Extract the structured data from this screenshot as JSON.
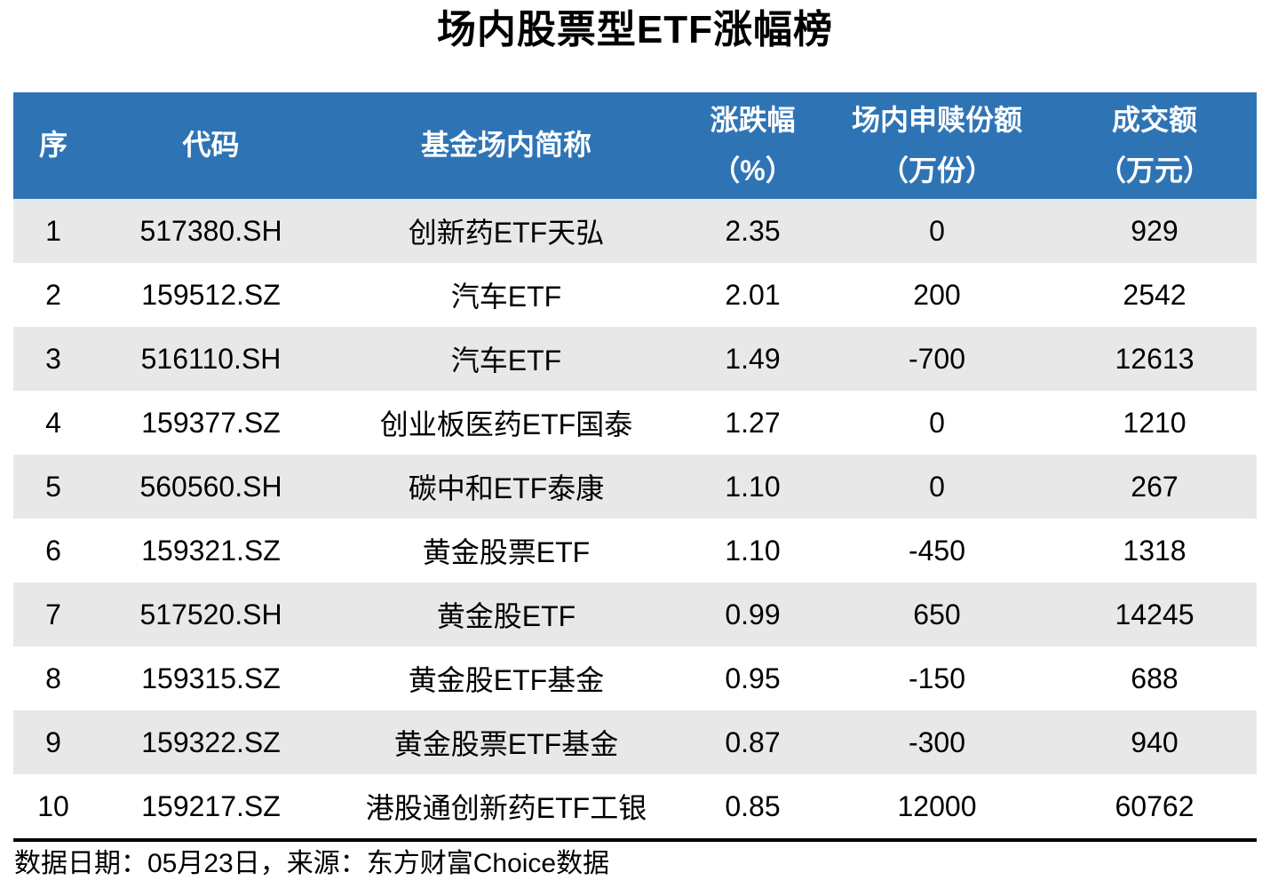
{
  "page": {
    "title": "场内股票型ETF涨幅榜",
    "footer_note": "数据日期：05月23日，来源：东方财富Choice数据"
  },
  "colors": {
    "header_bg": "#2E74B5",
    "header_text": "#FFFFFF",
    "row_alt_bg": "#E8E8E8",
    "row_bg": "#FFFFFF",
    "body_text": "#000000",
    "divider": "#000000"
  },
  "table": {
    "headers": [
      {
        "label": "序",
        "unit": ""
      },
      {
        "label": "代码",
        "unit": ""
      },
      {
        "label": "基金场内简称",
        "unit": ""
      },
      {
        "label": "涨跌幅",
        "unit": "（%）"
      },
      {
        "label": "场内申赎份额",
        "unit": "（万份）"
      },
      {
        "label": "成交额",
        "unit": "（万元）"
      }
    ],
    "rows": [
      {
        "rank": "1",
        "code": "517380.SH",
        "name": "创新药ETF天弘",
        "change": "2.35",
        "shares": "0",
        "turnover": "929"
      },
      {
        "rank": "2",
        "code": "159512.SZ",
        "name": "汽车ETF",
        "change": "2.01",
        "shares": "200",
        "turnover": "2542"
      },
      {
        "rank": "3",
        "code": "516110.SH",
        "name": "汽车ETF",
        "change": "1.49",
        "shares": "-700",
        "turnover": "12613"
      },
      {
        "rank": "4",
        "code": "159377.SZ",
        "name": "创业板医药ETF国泰",
        "change": "1.27",
        "shares": "0",
        "turnover": "1210"
      },
      {
        "rank": "5",
        "code": "560560.SH",
        "name": "碳中和ETF泰康",
        "change": "1.10",
        "shares": "0",
        "turnover": "267"
      },
      {
        "rank": "6",
        "code": "159321.SZ",
        "name": "黄金股票ETF",
        "change": "1.10",
        "shares": "-450",
        "turnover": "1318"
      },
      {
        "rank": "7",
        "code": "517520.SH",
        "name": "黄金股ETF",
        "change": "0.99",
        "shares": "650",
        "turnover": "14245"
      },
      {
        "rank": "8",
        "code": "159315.SZ",
        "name": "黄金股ETF基金",
        "change": "0.95",
        "shares": "-150",
        "turnover": "688"
      },
      {
        "rank": "9",
        "code": "159322.SZ",
        "name": "黄金股票ETF基金",
        "change": "0.87",
        "shares": "-300",
        "turnover": "940"
      },
      {
        "rank": "10",
        "code": "159217.SZ",
        "name": "港股通创新药ETF工银",
        "change": "0.85",
        "shares": "12000",
        "turnover": "60762"
      }
    ]
  },
  "chart_data": {
    "type": "table",
    "title": "场内股票型ETF涨幅榜",
    "columns": [
      "序",
      "代码",
      "基金场内简称",
      "涨跌幅（%）",
      "场内申赎份额（万份）",
      "成交额（万元）"
    ],
    "rows": [
      [
        1,
        "517380.SH",
        "创新药ETF天弘",
        2.35,
        0,
        929
      ],
      [
        2,
        "159512.SZ",
        "汽车ETF",
        2.01,
        200,
        2542
      ],
      [
        3,
        "516110.SH",
        "汽车ETF",
        1.49,
        -700,
        12613
      ],
      [
        4,
        "159377.SZ",
        "创业板医药ETF国泰",
        1.27,
        0,
        1210
      ],
      [
        5,
        "560560.SH",
        "碳中和ETF泰康",
        1.1,
        0,
        267
      ],
      [
        6,
        "159321.SZ",
        "黄金股票ETF",
        1.1,
        -450,
        1318
      ],
      [
        7,
        "517520.SH",
        "黄金股ETF",
        0.99,
        650,
        14245
      ],
      [
        8,
        "159315.SZ",
        "黄金股ETF基金",
        0.95,
        -150,
        688
      ],
      [
        9,
        "159322.SZ",
        "黄金股票ETF基金",
        0.87,
        -300,
        940
      ],
      [
        10,
        "159217.SZ",
        "港股通创新药ETF工银",
        0.85,
        12000,
        60762
      ]
    ],
    "source_note": "数据日期：05月23日，来源：东方财富Choice数据"
  }
}
